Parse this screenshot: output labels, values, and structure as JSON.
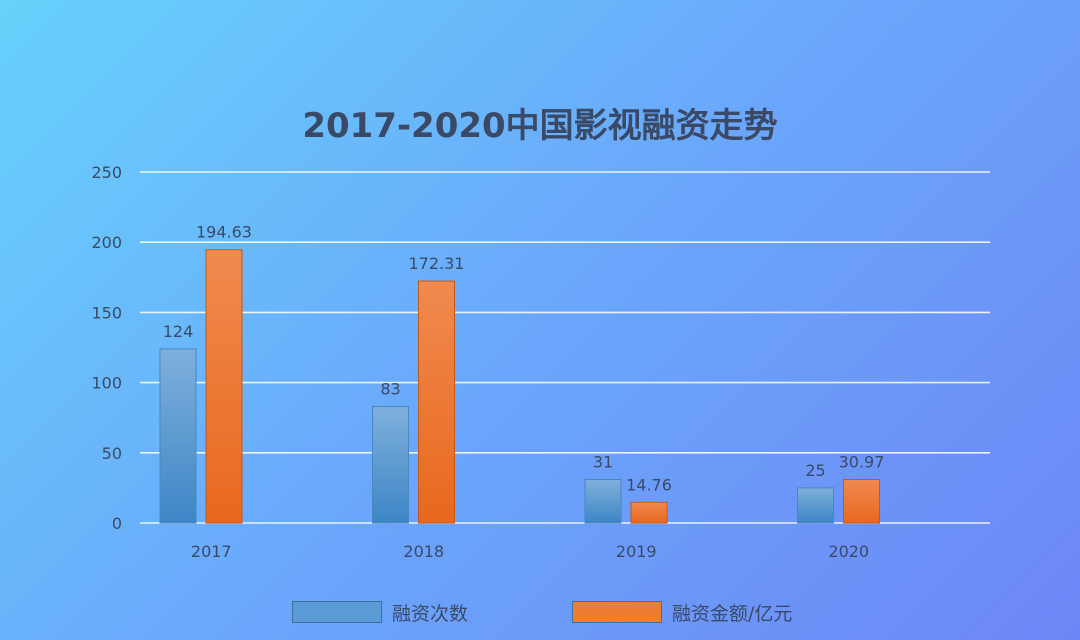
{
  "chart_data": {
    "type": "bar",
    "title": "2017-2020中国影视融资走势",
    "categories": [
      "2017",
      "2018",
      "2019",
      "2020"
    ],
    "series": [
      {
        "name": "融资次数",
        "values": [
          124,
          83,
          31,
          25
        ],
        "labels": [
          "124",
          "83",
          "31",
          "25"
        ],
        "color": "#5b9bd5"
      },
      {
        "name": "融资金额/亿元",
        "values": [
          194.63,
          172.31,
          14.76,
          30.97
        ],
        "labels": [
          "194.63",
          "172.31",
          "14.76",
          "30.97"
        ],
        "color": "#ed7d31"
      }
    ],
    "ylim": [
      0,
      250
    ],
    "yticks": [
      "0",
      "50",
      "100",
      "150",
      "200",
      "250"
    ],
    "grid": true,
    "legend_position": "bottom",
    "xlabel": "",
    "ylabel": ""
  },
  "colors": {
    "background_start": "#67d2fb",
    "background_end": "#6d86f5",
    "gridline": "#ffffff",
    "text": "#3a4a66"
  }
}
